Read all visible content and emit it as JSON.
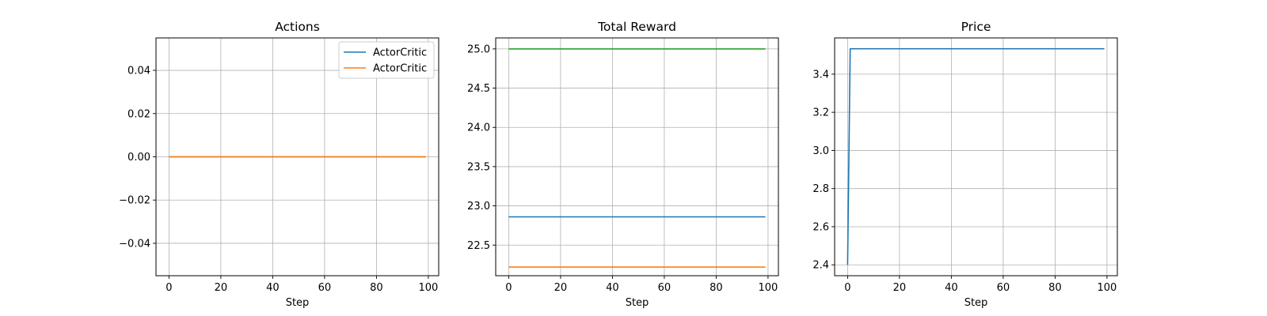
{
  "chart_data": [
    {
      "type": "line",
      "title": "Actions",
      "xlabel": "Step",
      "ylabel": "",
      "xlim": [
        -5,
        104
      ],
      "ylim": [
        -0.055,
        0.055
      ],
      "xticks": [
        0,
        20,
        40,
        60,
        80,
        100
      ],
      "yticks": [
        -0.04,
        -0.02,
        0.0,
        0.02,
        0.04
      ],
      "xtick_labels": [
        "0",
        "20",
        "40",
        "60",
        "80",
        "100"
      ],
      "ytick_labels": [
        "−0.04",
        "−0.02",
        "0.00",
        "0.02",
        "0.04"
      ],
      "grid": true,
      "legend": "top-right",
      "series": [
        {
          "name": "ActorCritic",
          "color": "#1f77b4",
          "x": [
            0,
            99
          ],
          "y": [
            0,
            0
          ]
        },
        {
          "name": "ActorCritic",
          "color": "#ff7f0e",
          "x": [
            0,
            99
          ],
          "y": [
            0,
            0
          ]
        }
      ]
    },
    {
      "type": "line",
      "title": "Total Reward",
      "xlabel": "Step",
      "ylabel": "",
      "xlim": [
        -5,
        104
      ],
      "ylim": [
        22.11,
        25.14
      ],
      "xticks": [
        0,
        20,
        40,
        60,
        80,
        100
      ],
      "yticks": [
        22.5,
        23.0,
        23.5,
        24.0,
        24.5,
        25.0
      ],
      "xtick_labels": [
        "0",
        "20",
        "40",
        "60",
        "80",
        "100"
      ],
      "ytick_labels": [
        "22.5",
        "23.0",
        "23.5",
        "24.0",
        "24.5",
        "25.0"
      ],
      "grid": true,
      "legend": "",
      "series": [
        {
          "color": "#1f77b4",
          "x": [
            0,
            99
          ],
          "y": [
            22.86,
            22.86
          ]
        },
        {
          "color": "#ff7f0e",
          "x": [
            0,
            99
          ],
          "y": [
            22.22,
            22.22
          ]
        },
        {
          "color": "#2ca02c",
          "x": [
            0,
            99
          ],
          "y": [
            25.0,
            25.0
          ]
        }
      ]
    },
    {
      "type": "line",
      "title": "Price",
      "xlabel": "Step",
      "ylabel": "",
      "xlim": [
        -5,
        104
      ],
      "ylim": [
        2.343,
        3.59
      ],
      "xticks": [
        0,
        20,
        40,
        60,
        80,
        100
      ],
      "yticks": [
        2.4,
        2.6,
        2.8,
        3.0,
        3.2,
        3.4
      ],
      "xtick_labels": [
        "0",
        "20",
        "40",
        "60",
        "80",
        "100"
      ],
      "ytick_labels": [
        "2.4",
        "2.6",
        "2.8",
        "3.0",
        "3.2",
        "3.4"
      ],
      "grid": true,
      "legend": "",
      "series": [
        {
          "color": "#1f77b4",
          "x": [
            0,
            1,
            99
          ],
          "y": [
            2.4,
            3.533,
            3.533
          ]
        }
      ]
    }
  ]
}
